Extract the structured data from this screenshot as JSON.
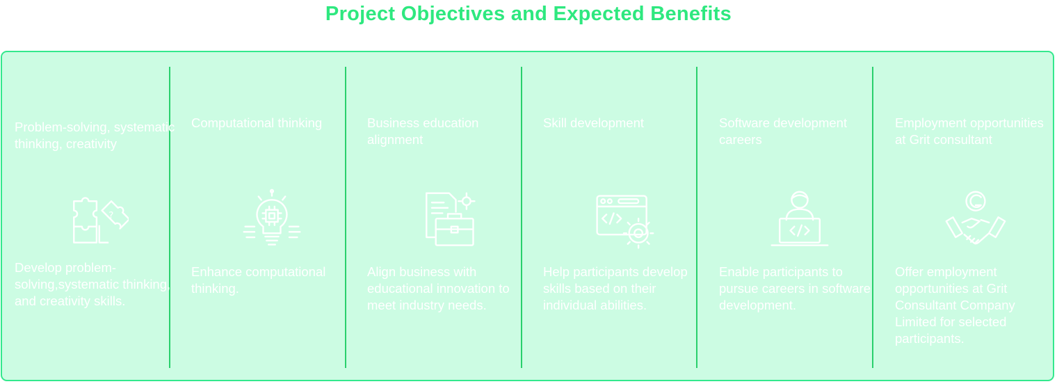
{
  "title": "Project Objectives and Expected Benefits",
  "colors": {
    "accent": "#2ee87f",
    "panel": "#ccfce3",
    "divider": "#29d06c",
    "text": "#ffffff"
  },
  "objectives": [
    {
      "title": "Problem-solving, systematic thinking, creativity",
      "icon": "puzzle-icon",
      "description": "Develop problem-solving,systematic thinking, and creativity skills."
    },
    {
      "title": "Computational thinking",
      "icon": "lightbulb-chip-icon",
      "description": "Enhance computational thinking."
    },
    {
      "title": "Business education alignment",
      "icon": "briefcase-document-icon",
      "description": "Align business with educational innovation to meet industry needs."
    },
    {
      "title": "Skill development",
      "icon": "code-window-gear-icon",
      "description": "Help participants develop skills based on their individual abilities."
    },
    {
      "title": "Software development careers",
      "icon": "developer-laptop-icon",
      "description": "Enable participants to pursue careers in software development."
    },
    {
      "title": "Employment opportunities at Grit consultant",
      "icon": "handshake-logo-icon",
      "description": "Offer employment opportunities at Grit Consultant Company Limited for selected participants."
    }
  ]
}
